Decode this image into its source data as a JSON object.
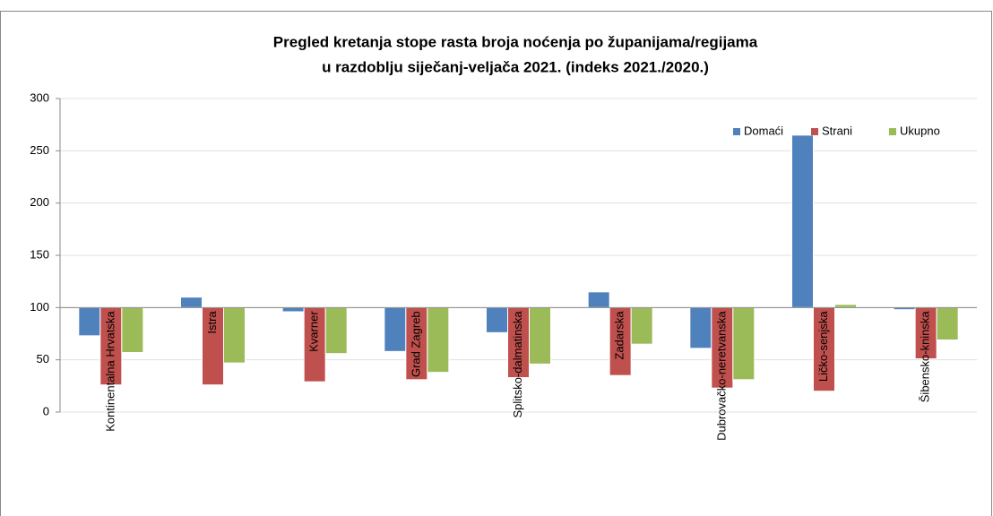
{
  "chart_data": {
    "type": "bar",
    "title": [
      "Pregled kretanja stope rasta broja noćenja po županijama/regijama",
      "u razdoblju siječanj-veljača 2021. (indeks 2021./2020.)"
    ],
    "categories": [
      "Kontinentalna Hrvatska",
      "Istra",
      "Kvarner",
      "Grad Zagreb",
      "Splitsko-dalmatinska",
      "Zadarska",
      "Dubrovačko-neretvanska",
      "Ličko-senjska",
      "Šibensko-kninska"
    ],
    "series": [
      {
        "name": "Domaći",
        "color": "#4f81bd",
        "values": [
          73,
          110,
          96,
          58,
          76,
          115,
          61,
          265,
          98
        ]
      },
      {
        "name": "Strani",
        "color": "#c0504d",
        "values": [
          26,
          26,
          29,
          31,
          33,
          35,
          23,
          20,
          51
        ]
      },
      {
        "name": "Ukupno",
        "color": "#9bbb59",
        "values": [
          57,
          47,
          56,
          38,
          46,
          65,
          31,
          103,
          69
        ]
      }
    ],
    "bar_base": 100,
    "ylim": [
      0,
      300
    ],
    "yticks": [
      0,
      50,
      100,
      150,
      200,
      250,
      300
    ],
    "grid": true,
    "legend": "upper right"
  }
}
